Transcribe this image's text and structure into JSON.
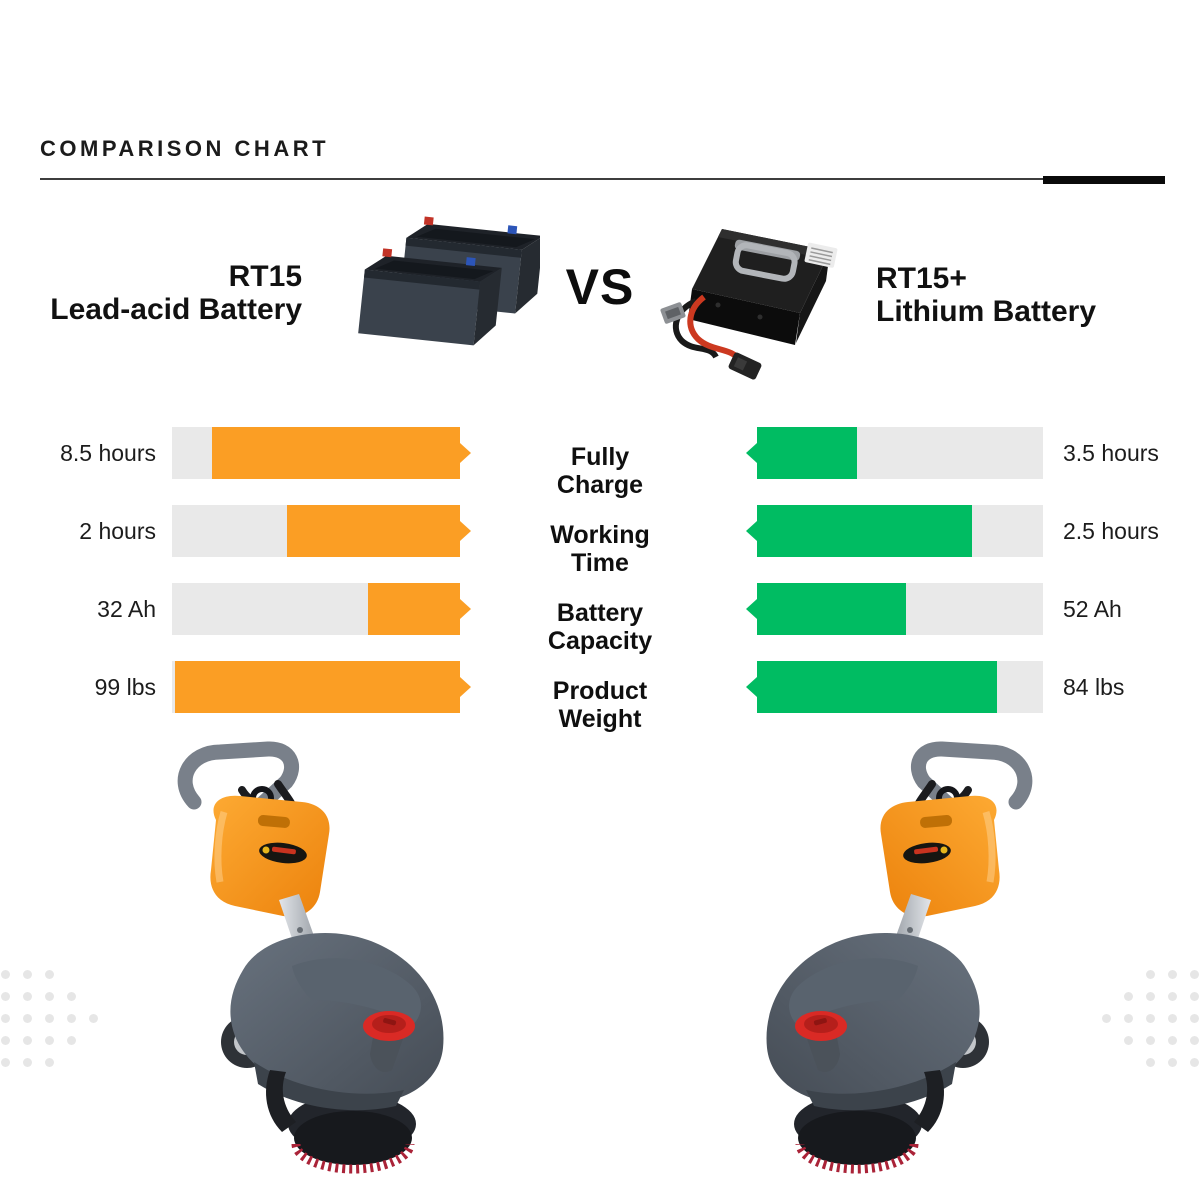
{
  "title": "COMPARISON CHART",
  "header": {
    "left_product": {
      "name": "RT15",
      "type": "Lead-acid Battery"
    },
    "versus": "VS",
    "right_product": {
      "name": "RT15+",
      "type": "Lithium Battery"
    }
  },
  "images": {
    "left_battery": "lead-acid-battery-photo",
    "right_battery": "lithium-battery-photo",
    "left_machine": "rt15-floor-scrubber-photo",
    "right_machine": "rt15-plus-floor-scrubber-photo"
  },
  "colors": {
    "accent_left": "#FB9E24",
    "accent_right": "#00BC62",
    "track": "#E9E9E9",
    "divider": "#3d3d3d",
    "divider_accent": "#0a0a0a",
    "text": "#161616"
  },
  "chart_data": {
    "type": "bar",
    "layout": "mirrored horizontal bars; left series anchored to center with arrow tips pointing outward right, right series anchored to center with arrow tips pointing outward left; category labels centered between the two bar columns; grid off; values labeled at outer ends",
    "title": "COMPARISON CHART",
    "categories": [
      "Fully Charge",
      "Working Time",
      "Battery Capacity",
      "Product Weight"
    ],
    "units": [
      "hours",
      "hours",
      "Ah",
      "lbs"
    ],
    "series": [
      {
        "name": "RT15 Lead-acid Battery",
        "side": "left",
        "color": "#FB9E24",
        "values": [
          8.5,
          2,
          32,
          99
        ],
        "value_labels": [
          "8.5 hours",
          "2 hours",
          "32 Ah",
          "99 lbs"
        ],
        "bar_fill_pct": [
          86,
          60,
          32,
          99
        ]
      },
      {
        "name": "RT15+ Lithium Battery",
        "side": "right",
        "color": "#00BC62",
        "values": [
          3.5,
          2.5,
          52,
          84
        ],
        "value_labels": [
          "3.5 hours",
          "2.5 hours",
          "52 Ah",
          "84 lbs"
        ],
        "bar_fill_pct": [
          35,
          75,
          52,
          84
        ]
      }
    ],
    "track_color": "#E9E9E9"
  },
  "rows": [
    {
      "category_line1": "Fully",
      "category_line2": "Charge",
      "left_value": "8.5 hours",
      "right_value": "3.5 hours",
      "left_fill_pct": 86,
      "right_fill_pct": 35
    },
    {
      "category_line1": "Working",
      "category_line2": "Time",
      "left_value": "2 hours",
      "right_value": "2.5 hours",
      "left_fill_pct": 60,
      "right_fill_pct": 75
    },
    {
      "category_line1": "Battery",
      "category_line2": "Capacity",
      "left_value": "32 Ah",
      "right_value": "52 Ah",
      "left_fill_pct": 32,
      "right_fill_pct": 52
    },
    {
      "category_line1": "Product",
      "category_line2": "Weight",
      "left_value": "99 lbs",
      "right_value": "84 lbs",
      "left_fill_pct": 99,
      "right_fill_pct": 84
    }
  ]
}
